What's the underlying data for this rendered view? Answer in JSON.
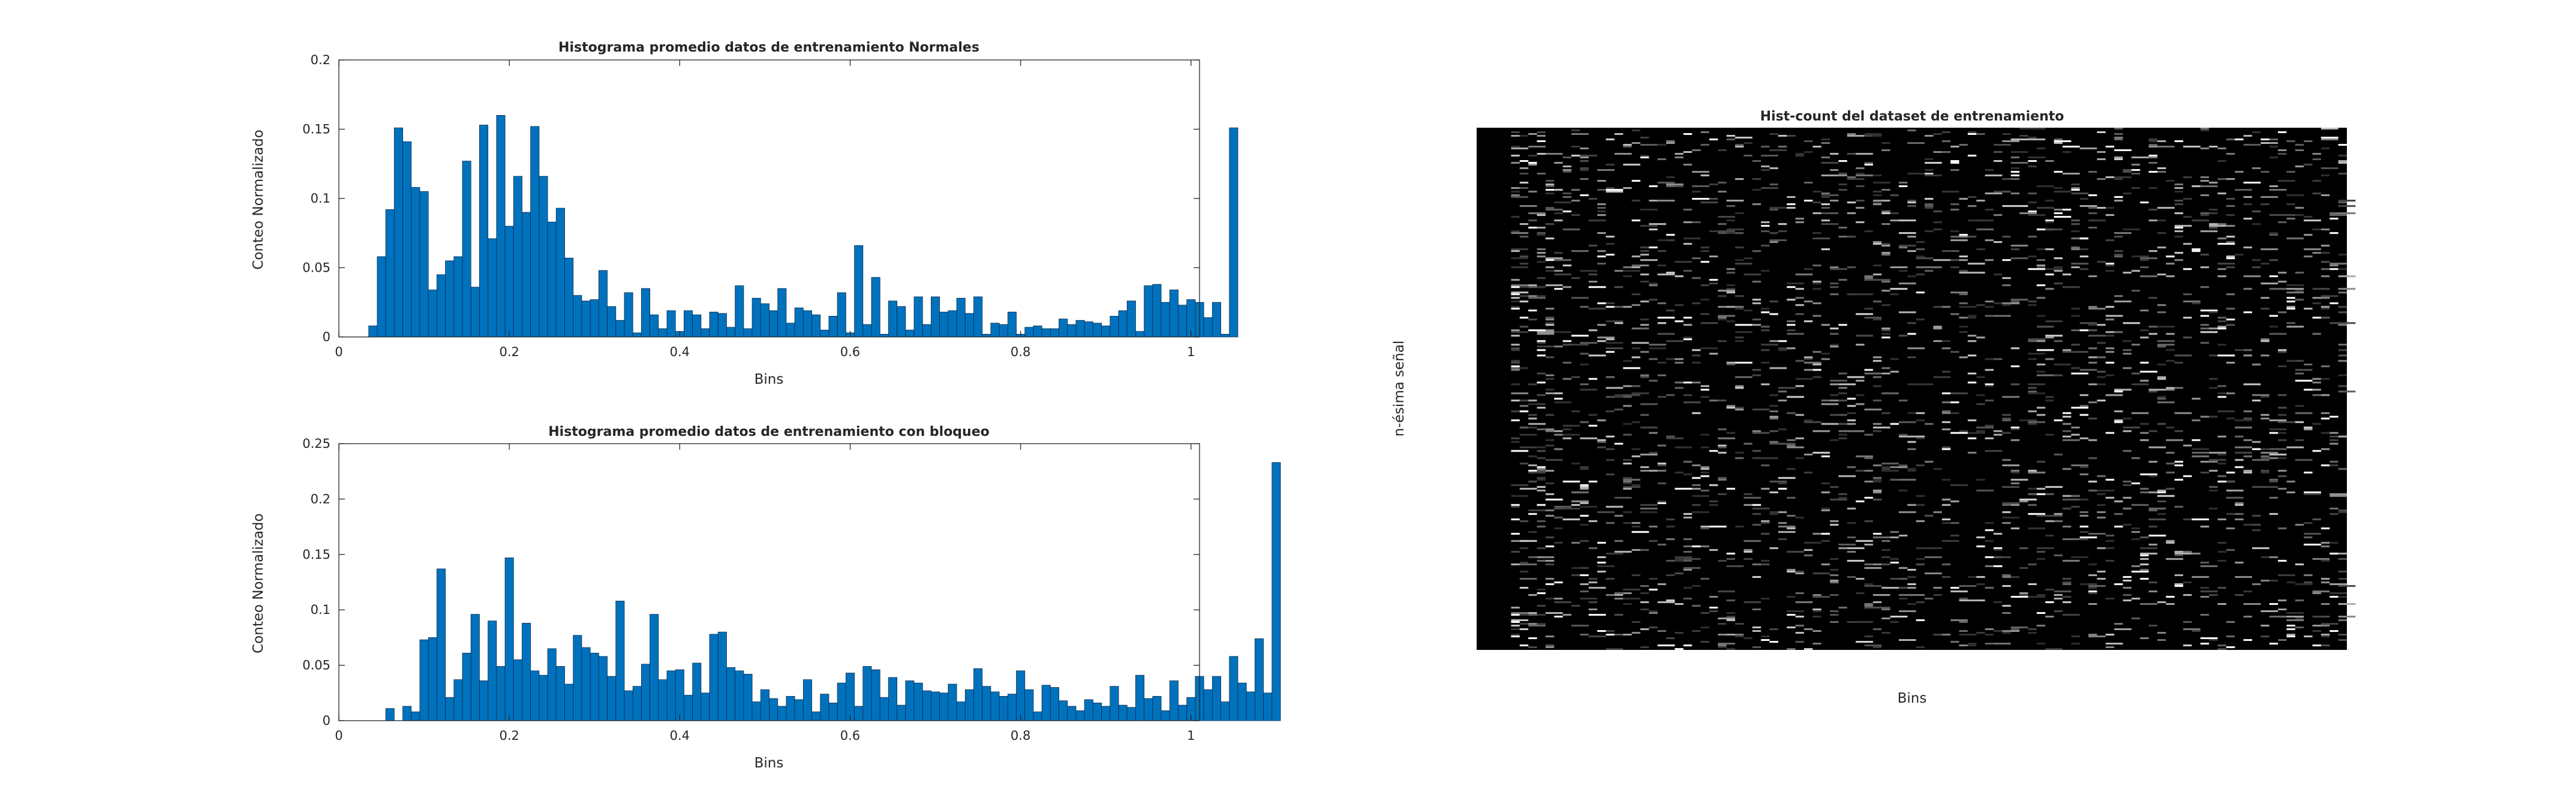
{
  "colors": {
    "bar_fill": "#0072BD",
    "bar_edge": "#0b2a4a",
    "axis": "#262626",
    "image_background": "#000000"
  },
  "chart_data": [
    {
      "type": "bar",
      "title": "Histograma promedio datos de entrenamiento Normales",
      "xlabel": "Bins",
      "ylabel": "Conteo Normalizado",
      "xlim": [
        0,
        1.01
      ],
      "ylim": [
        0,
        0.2
      ],
      "xticks": [
        "0",
        "0.2",
        "0.4",
        "0.6",
        "0.8",
        "1"
      ],
      "yticks": [
        "0",
        "0.05",
        "0.1",
        "0.15",
        "0.2"
      ],
      "grid": false,
      "bin_width": 0.01,
      "x_start": 0.01,
      "values": [
        0,
        0,
        0,
        0.008,
        0.058,
        0.092,
        0.151,
        0.141,
        0.108,
        0.105,
        0.034,
        0.045,
        0.055,
        0.058,
        0.127,
        0.036,
        0.153,
        0.071,
        0.16,
        0.08,
        0.116,
        0.09,
        0.152,
        0.116,
        0.083,
        0.093,
        0.057,
        0.03,
        0.026,
        0.027,
        0.048,
        0.022,
        0.012,
        0.032,
        0.003,
        0.035,
        0.016,
        0.006,
        0.019,
        0.004,
        0.019,
        0.016,
        0.006,
        0.018,
        0.017,
        0.007,
        0.037,
        0.006,
        0.028,
        0.024,
        0.019,
        0.035,
        0.01,
        0.021,
        0.019,
        0.016,
        0.005,
        0.015,
        0.032,
        0.003,
        0.066,
        0.009,
        0.043,
        0.002,
        0.026,
        0.022,
        0.005,
        0.029,
        0.009,
        0.029,
        0.018,
        0.019,
        0.028,
        0.017,
        0.029,
        0.002,
        0.01,
        0.009,
        0.018,
        0.002,
        0.007,
        0.008,
        0.006,
        0.006,
        0.013,
        0.009,
        0.012,
        0.011,
        0.01,
        0.008,
        0.015,
        0.019,
        0.026,
        0.004,
        0.037,
        0.038,
        0.025,
        0.034,
        0.023,
        0.027,
        0.025,
        0.014,
        0.025,
        0.002,
        0.151
      ]
    },
    {
      "type": "bar",
      "title": "Histograma promedio datos de entrenamiento con bloqueo",
      "xlabel": "Bins",
      "ylabel": "Conteo Normalizado",
      "xlim": [
        0,
        1.01
      ],
      "ylim": [
        0,
        0.25
      ],
      "xticks": [
        "0",
        "0.2",
        "0.4",
        "0.6",
        "0.8",
        "1"
      ],
      "yticks": [
        "0",
        "0.05",
        "0.1",
        "0.15",
        "0.2",
        "0.25"
      ],
      "grid": false,
      "bin_width": 0.01,
      "x_start": 0.01,
      "values": [
        0,
        0,
        0,
        0,
        0,
        0.011,
        0,
        0.013,
        0.008,
        0.073,
        0.075,
        0.137,
        0.021,
        0.037,
        0.061,
        0.096,
        0.036,
        0.09,
        0.049,
        0.147,
        0.055,
        0.088,
        0.045,
        0.041,
        0.065,
        0.049,
        0.033,
        0.077,
        0.066,
        0.061,
        0.058,
        0.04,
        0.108,
        0.027,
        0.031,
        0.051,
        0.096,
        0.037,
        0.045,
        0.046,
        0.023,
        0.052,
        0.025,
        0.078,
        0.08,
        0.048,
        0.045,
        0.042,
        0.017,
        0.028,
        0.02,
        0.013,
        0.022,
        0.019,
        0.037,
        0.008,
        0.024,
        0.016,
        0.034,
        0.043,
        0.013,
        0.049,
        0.046,
        0.021,
        0.039,
        0.014,
        0.036,
        0.034,
        0.027,
        0.026,
        0.025,
        0.033,
        0.017,
        0.028,
        0.047,
        0.031,
        0.026,
        0.022,
        0.024,
        0.045,
        0.028,
        0.008,
        0.032,
        0.03,
        0.018,
        0.013,
        0.009,
        0.019,
        0.016,
        0.013,
        0.031,
        0.014,
        0.012,
        0.041,
        0.02,
        0.022,
        0.009,
        0.036,
        0.014,
        0.021,
        0.04,
        0.028,
        0.04,
        0.017,
        0.058,
        0.034,
        0.026,
        0.074,
        0.025,
        0.233
      ]
    },
    {
      "type": "heatmap",
      "title": "Hist-count del dataset de entrenamiento",
      "xlabel": "Bins",
      "ylabel": "n-ésima señal",
      "colormap": "gray",
      "axes_visible": false
    }
  ]
}
